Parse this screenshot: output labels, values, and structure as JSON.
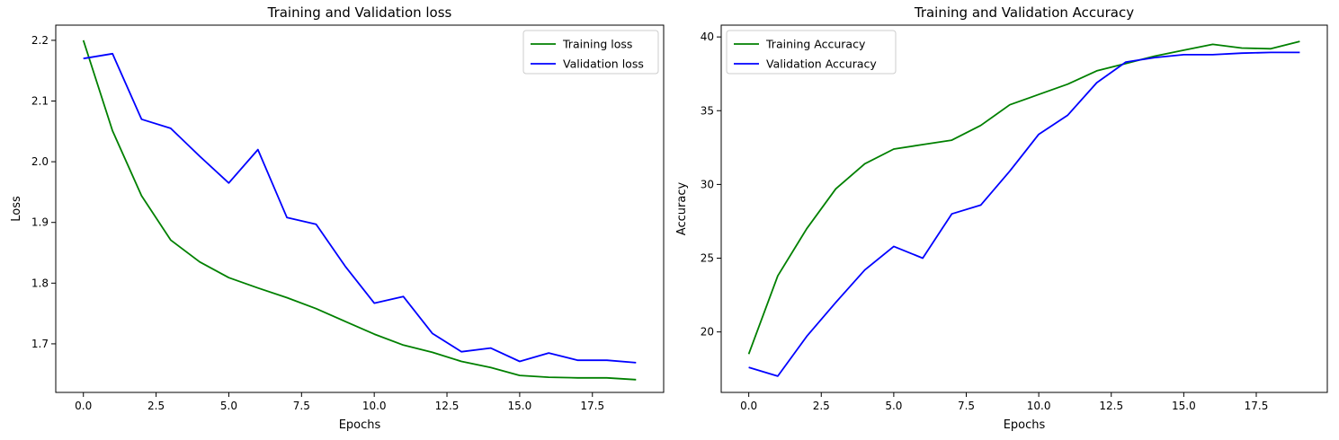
{
  "colors": {
    "training": "#008000",
    "validation": "#0000ff"
  },
  "chart_data": [
    {
      "type": "line",
      "title": "Training and Validation loss",
      "xlabel": "Epochs",
      "ylabel": "Loss",
      "xlim": [
        -0.95,
        19.95
      ],
      "ylim": [
        1.62,
        2.225
      ],
      "xticks": [
        0.0,
        2.5,
        5.0,
        7.5,
        10.0,
        12.5,
        15.0,
        17.5
      ],
      "xtick_labels": [
        "0.0",
        "2.5",
        "5.0",
        "7.5",
        "10.0",
        "12.5",
        "15.0",
        "17.5"
      ],
      "yticks": [
        1.7,
        1.8,
        1.9,
        2.0,
        2.1,
        2.2
      ],
      "ytick_labels": [
        "1.7",
        "1.8",
        "1.9",
        "2.0",
        "2.1",
        "2.2"
      ],
      "legend": "top-right",
      "grid": false,
      "x": [
        0,
        1,
        2,
        3,
        4,
        5,
        6,
        7,
        8,
        9,
        10,
        11,
        12,
        13,
        14,
        15,
        16,
        17,
        18,
        19
      ],
      "series": [
        {
          "name": "Training loss",
          "color": "#008000",
          "values": [
            2.2,
            2.051,
            1.944,
            1.871,
            1.835,
            1.809,
            1.792,
            1.776,
            1.758,
            1.737,
            1.716,
            1.698,
            1.686,
            1.671,
            1.661,
            1.648,
            1.645,
            1.644,
            1.644,
            1.641
          ]
        },
        {
          "name": "Validation loss",
          "color": "#0000ff",
          "values": [
            2.17,
            2.178,
            2.07,
            2.055,
            2.009,
            1.965,
            2.02,
            1.908,
            1.897,
            1.828,
            1.767,
            1.778,
            1.717,
            1.687,
            1.693,
            1.671,
            1.685,
            1.673,
            1.673,
            1.669
          ]
        }
      ]
    },
    {
      "type": "line",
      "title": "Training and Validation Accuracy",
      "xlabel": "Epochs",
      "ylabel": "Accuracy",
      "xlim": [
        -0.95,
        19.95
      ],
      "ylim": [
        15.9,
        40.8
      ],
      "xticks": [
        0.0,
        2.5,
        5.0,
        7.5,
        10.0,
        12.5,
        15.0,
        17.5
      ],
      "xtick_labels": [
        "0.0",
        "2.5",
        "5.0",
        "7.5",
        "10.0",
        "12.5",
        "15.0",
        "17.5"
      ],
      "yticks": [
        20,
        25,
        30,
        35,
        40
      ],
      "ytick_labels": [
        "20",
        "25",
        "30",
        "35",
        "40"
      ],
      "legend": "top-left",
      "grid": false,
      "x": [
        0,
        1,
        2,
        3,
        4,
        5,
        6,
        7,
        8,
        9,
        10,
        11,
        12,
        13,
        14,
        15,
        16,
        17,
        18,
        19
      ],
      "series": [
        {
          "name": "Training Accuracy",
          "color": "#008000",
          "values": [
            18.5,
            23.8,
            27.0,
            29.7,
            31.4,
            32.4,
            32.7,
            33.0,
            34.0,
            35.4,
            36.1,
            36.8,
            37.7,
            38.2,
            38.7,
            39.1,
            39.5,
            39.25,
            39.2,
            39.7
          ]
        },
        {
          "name": "Validation Accuracy",
          "color": "#0000ff",
          "values": [
            17.6,
            17.0,
            19.7,
            22.0,
            24.2,
            25.8,
            25.0,
            28.0,
            28.6,
            30.9,
            33.4,
            34.7,
            36.9,
            38.3,
            38.6,
            38.8,
            38.8,
            38.9,
            38.95,
            38.95
          ]
        }
      ]
    }
  ]
}
